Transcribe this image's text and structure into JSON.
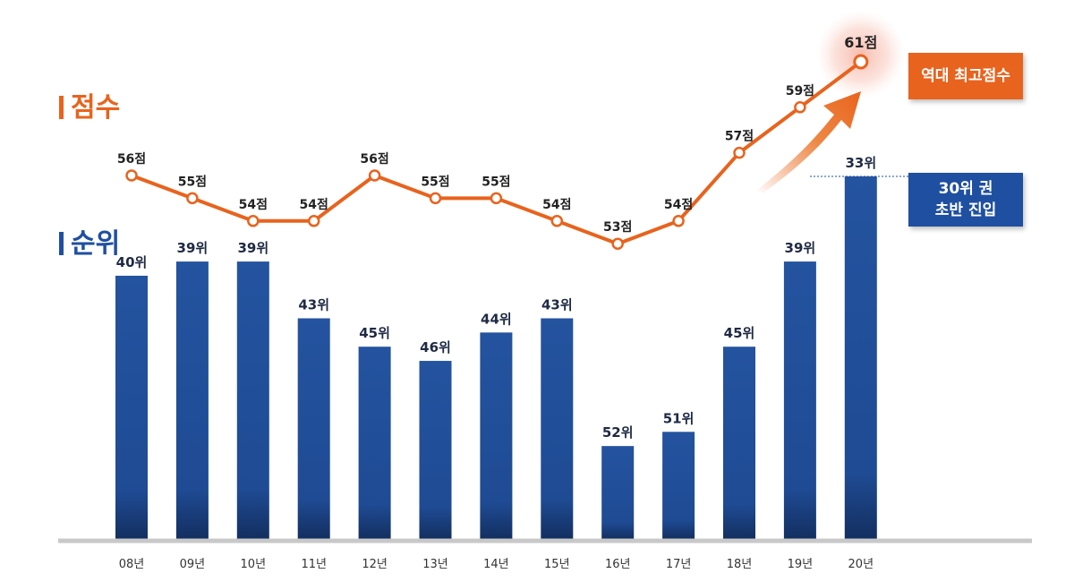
{
  "labels": {
    "score_label": "점수",
    "rank_label": "순위"
  },
  "callouts": {
    "best_score": "역대 최고점수",
    "rank_line1": "30위 권",
    "rank_line2": "초반 진입"
  },
  "colors": {
    "score_line": "#e8631d",
    "rank_bar": "#1f4fa0",
    "rank_bar_dark": "#173b7a",
    "axis": "#c8c8c8",
    "text": "#222222"
  },
  "chart_data": {
    "type": "bar+line",
    "categories": [
      "08년",
      "09년",
      "10년",
      "11년",
      "12년",
      "13년",
      "14년",
      "15년",
      "16년",
      "17년",
      "18년",
      "19년",
      "20년"
    ],
    "series": [
      {
        "name": "점수",
        "type": "line",
        "values": [
          56,
          55,
          54,
          54,
          56,
          55,
          55,
          54,
          53,
          54,
          57,
          59,
          61
        ],
        "labels": [
          "56점",
          "55점",
          "54점",
          "54점",
          "56점",
          "55점",
          "55점",
          "54점",
          "53점",
          "54점",
          "57점",
          "59점",
          "61점"
        ]
      },
      {
        "name": "순위",
        "type": "bar",
        "values": [
          40,
          39,
          39,
          43,
          45,
          46,
          44,
          43,
          52,
          51,
          45,
          39,
          33
        ],
        "labels": [
          "40위",
          "39위",
          "39위",
          "43위",
          "45위",
          "46위",
          "44위",
          "43위",
          "52위",
          "51위",
          "45위",
          "39위",
          "33위"
        ]
      }
    ],
    "score_scale": [
      50,
      62
    ],
    "rank_scale": [
      30,
      55
    ]
  }
}
